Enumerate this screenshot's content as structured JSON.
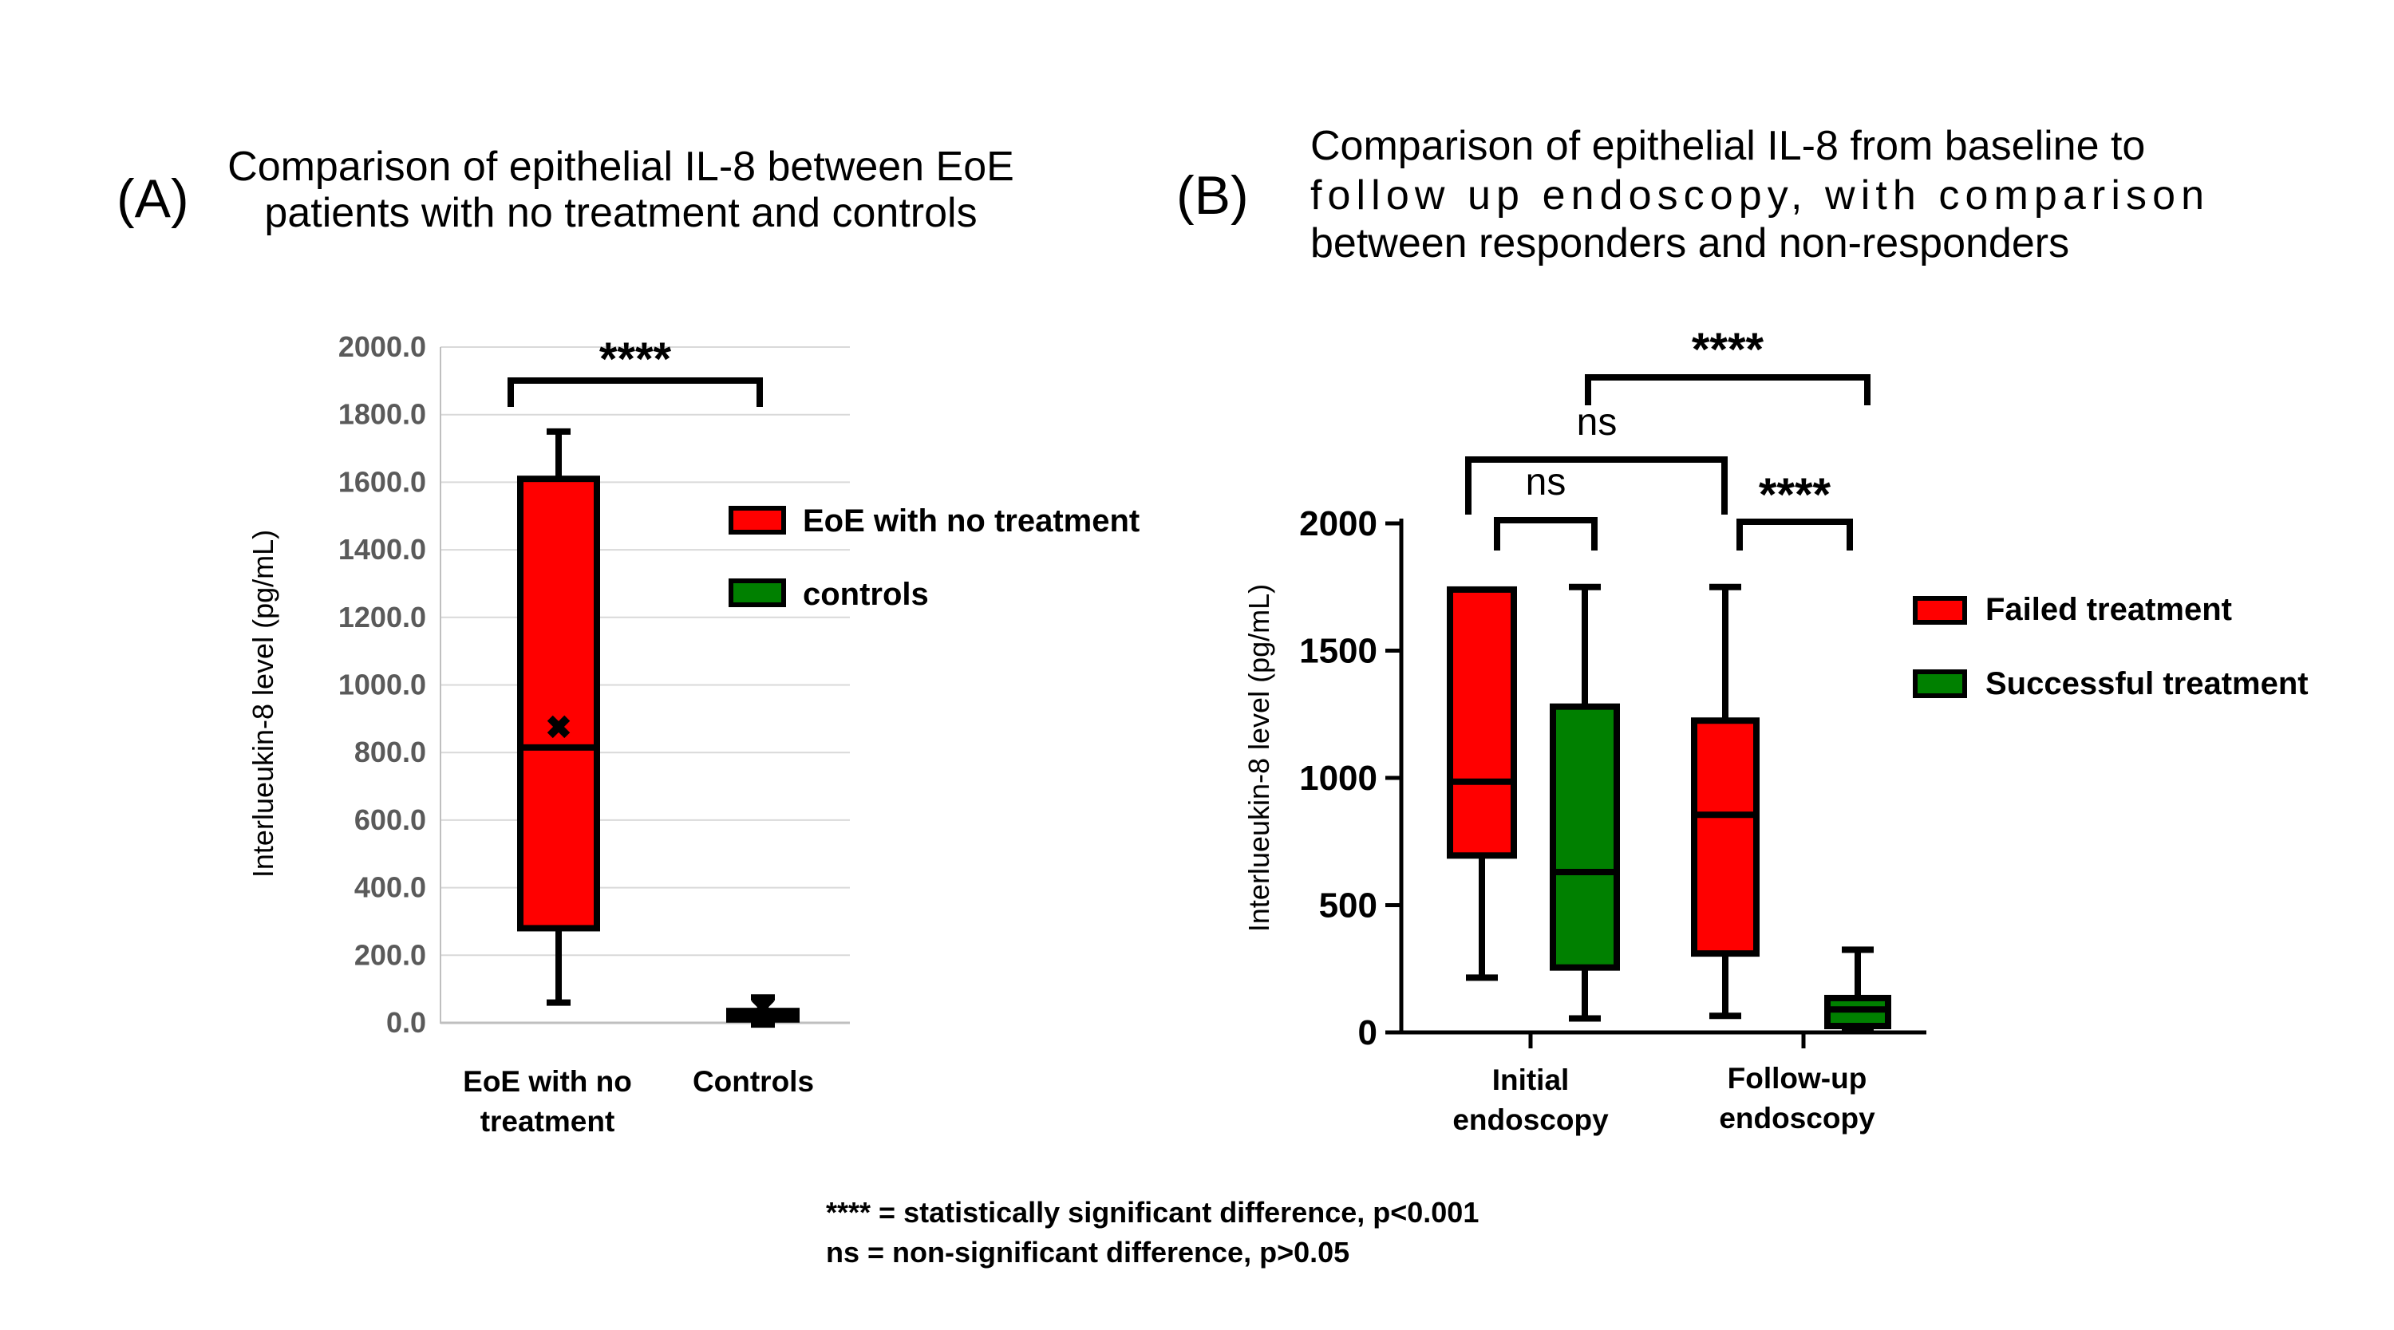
{
  "colors": {
    "red": "#ff0000",
    "green": "#008000",
    "grid": "#d9d9d9",
    "axis_a": "#bfbfbf",
    "outline": "#000000"
  },
  "chart_data": [
    {
      "panel": "(A)",
      "type": "box",
      "title": [
        "Comparison of epithelial IL-8 between EoE",
        "patients with no treatment and controls"
      ],
      "ylabel": "Interlueukin-8 level (pg/mL)",
      "ylim": [
        0,
        2000
      ],
      "yticks": [
        "0.0",
        "200.0",
        "400.0",
        "600.0",
        "800.0",
        "1000.0",
        "1200.0",
        "1400.0",
        "1600.0",
        "1800.0",
        "2000.0"
      ],
      "grid": true,
      "categories": [
        [
          "EoE with no",
          "treatment"
        ],
        [
          "Controls"
        ]
      ],
      "series": [
        {
          "name": "EoE with no treatment",
          "color": "#ff0000",
          "min": 60,
          "q1": 280,
          "median": 815,
          "q3": 1610,
          "max": 1750,
          "mean": 875
        },
        {
          "name": "controls",
          "color": "#008000",
          "min": -5,
          "q1": 10,
          "median": 25,
          "q3": 35,
          "max": 75,
          "mean": 45
        }
      ],
      "legend": [
        "EoE with no treatment",
        "controls"
      ],
      "legend_position": "right",
      "significance": [
        {
          "between": [
            "EoE with no treatment",
            "controls"
          ],
          "label": "****"
        }
      ]
    },
    {
      "panel": "(B)",
      "type": "box",
      "title": [
        "Comparison of epithelial IL-8 from baseline to",
        "follow up endoscopy, with comparison",
        "between responders and non-responders"
      ],
      "ylabel": "Interlueukin-8 level (pg/mL)",
      "ylim": [
        0,
        2000
      ],
      "yticks": [
        "0",
        "500",
        "1000",
        "1500",
        "2000"
      ],
      "grid": false,
      "categories": [
        [
          "Initial",
          "endoscopy"
        ],
        [
          "Follow-up",
          "endoscopy"
        ]
      ],
      "series": [
        {
          "name": "Failed treatment",
          "color": "#ff0000",
          "boxes": [
            {
              "category": "Initial endoscopy",
              "min": 215,
              "q1": 695,
              "median": 985,
              "q3": 1740,
              "max": 1740
            },
            {
              "category": "Follow-up endoscopy",
              "min": 65,
              "q1": 310,
              "median": 855,
              "q3": 1225,
              "max": 1750
            }
          ]
        },
        {
          "name": "Successful treatment",
          "color": "#008000",
          "boxes": [
            {
              "category": "Initial endoscopy",
              "min": 55,
              "q1": 255,
              "median": 630,
              "q3": 1280,
              "max": 1750
            },
            {
              "category": "Follow-up endoscopy",
              "min": 15,
              "q1": 25,
              "median": 90,
              "q3": 135,
              "max": 325
            }
          ]
        }
      ],
      "legend": [
        "Failed treatment",
        "Successful treatment"
      ],
      "legend_position": "right",
      "significance": [
        {
          "between": [
            "Initial Failed treatment",
            "Initial Successful treatment"
          ],
          "label": "ns"
        },
        {
          "between": [
            "Initial endoscopy",
            "Follow-up Failed treatment"
          ],
          "label": "ns"
        },
        {
          "between": [
            "Follow-up Failed treatment",
            "Follow-up Successful treatment"
          ],
          "label": "****"
        },
        {
          "between": [
            "Initial Successful treatment",
            "Follow-up Successful treatment"
          ],
          "label": "****"
        }
      ]
    }
  ],
  "footnotes": [
    "**** = statistically significant difference, p<0.001",
    "ns = non-significant difference, p>0.05"
  ]
}
